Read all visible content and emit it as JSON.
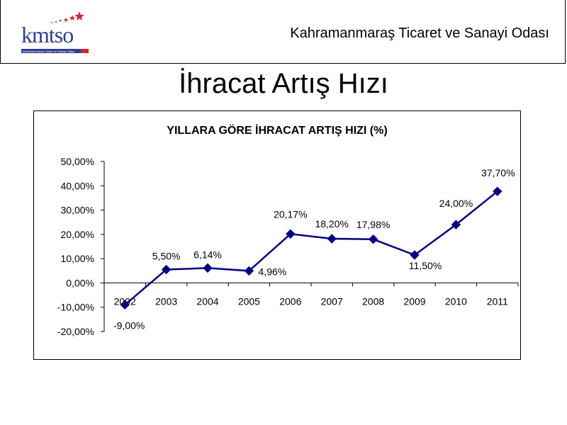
{
  "header": {
    "logo_text": "kmtso",
    "logo_subtitle": "Kahramanmaraş Ticaret ve Sanayi Odası",
    "org_name": "Kahramanmaraş Ticaret ve Sanayi Odası"
  },
  "slide_title": "İhracat Artış Hızı",
  "colors": {
    "series": "#000080",
    "logo_blue": "#2e3f8f",
    "logo_red": "#d7262b"
  },
  "chart_data": {
    "type": "line",
    "title": "YILLARA GÖRE İHRACAT ARTIŞ HIZI (%)",
    "xlabel": "",
    "ylabel": "",
    "categories": [
      "2002",
      "2003",
      "2004",
      "2005",
      "2006",
      "2007",
      "2008",
      "2009",
      "2010",
      "2011"
    ],
    "series": [
      {
        "values": [
          -9.0,
          5.5,
          6.14,
          4.96,
          20.17,
          18.2,
          17.98,
          11.5,
          24.0,
          37.7
        ],
        "labels": [
          "-9,00%",
          "5,50%",
          "6,14%",
          "4,96%",
          "20,17%",
          "18,20%",
          "17,98%",
          "11,50%",
          "24,00%",
          "37,70%"
        ]
      }
    ],
    "ylim": [
      -20,
      50
    ],
    "yticks": [
      "-20,00%",
      "-10,00%",
      "0,00%",
      "10,00%",
      "20,00%",
      "30,00%",
      "40,00%",
      "50,00%"
    ],
    "ytick_values": [
      -20,
      -10,
      0,
      10,
      20,
      30,
      40,
      50
    ],
    "grid": false,
    "legend": "none",
    "marker": "diamond"
  }
}
